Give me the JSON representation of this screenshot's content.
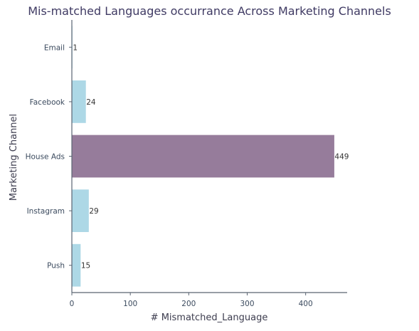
{
  "chart_data": {
    "type": "bar",
    "orientation": "horizontal",
    "title": "Mis-matched Languages occurrance Across Marketing Channels",
    "xlabel": "# Mismatched_Language",
    "ylabel": "Marketing Channel",
    "categories": [
      "Email",
      "Facebook",
      "House Ads",
      "Instagram",
      "Push"
    ],
    "values": [
      1,
      24,
      449,
      29,
      15
    ],
    "data_labels": [
      "1",
      "24",
      "449",
      "29",
      "15"
    ],
    "colors": [
      "#add8e6",
      "#add8e6",
      "#967c9b",
      "#add8e6",
      "#add8e6"
    ],
    "xlim": [
      0,
      471
    ],
    "xticks": [
      0,
      100,
      200,
      300,
      400
    ],
    "grid": false,
    "legend": "none"
  }
}
